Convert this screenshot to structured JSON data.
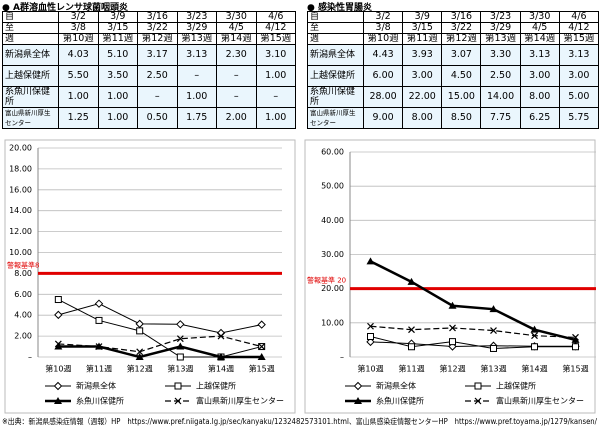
{
  "tables": [
    {
      "title": "● A群溶血性レンサ球菌咽頭炎",
      "header": [
        [
          "自",
          "3/2",
          "3/9",
          "3/16",
          "3/23",
          "3/30",
          "4/6"
        ],
        [
          "至",
          "3/8",
          "3/15",
          "3/22",
          "3/29",
          "4/5",
          "4/12"
        ],
        [
          "週",
          "第10週",
          "第11週",
          "第12週",
          "第13週",
          "第14週",
          "第15週"
        ]
      ],
      "rows": [
        [
          "新潟県全体",
          "4.03",
          "5.10",
          "3.17",
          "3.13",
          "2.30",
          "3.10"
        ],
        [
          "上越保健所",
          "5.50",
          "3.50",
          "2.50",
          "–",
          "–",
          "1.00"
        ],
        [
          "糸魚川保健所",
          "1.00",
          "1.00",
          "–",
          "1.00",
          "–",
          "–"
        ],
        [
          "富山県新川厚生センター",
          "1.25",
          "1.00",
          "0.50",
          "1.75",
          "2.00",
          "1.00"
        ]
      ]
    },
    {
      "title": "● 感染性胃腸炎",
      "header": [
        [
          "自",
          "3/2",
          "3/9",
          "3/16",
          "3/23",
          "3/30",
          "4/6"
        ],
        [
          "至",
          "3/8",
          "3/15",
          "3/22",
          "3/29",
          "4/5",
          "4/12"
        ],
        [
          "週",
          "第10週",
          "第11週",
          "第12週",
          "第13週",
          "第14週",
          "第15週"
        ]
      ],
      "rows": [
        [
          "新潟県全体",
          "4.43",
          "3.93",
          "3.07",
          "3.30",
          "3.13",
          "3.13"
        ],
        [
          "上越保健所",
          "6.00",
          "3.00",
          "4.50",
          "2.50",
          "3.00",
          "3.00"
        ],
        [
          "糸魚川保健所",
          "28.00",
          "22.00",
          "15.00",
          "14.00",
          "8.00",
          "5.00"
        ],
        [
          "富山県新川厚生センター",
          "9.00",
          "8.00",
          "8.50",
          "7.75",
          "6.25",
          "5.75"
        ]
      ]
    }
  ],
  "chart_data": [
    {
      "type": "line",
      "categories": [
        "第10週",
        "第11週",
        "第12週",
        "第13週",
        "第14週",
        "第15週"
      ],
      "ylim": [
        0,
        20
      ],
      "yticks": [
        {
          "value": 0,
          "label": "–"
        },
        {
          "value": 2,
          "label": "2.00"
        },
        {
          "value": 4,
          "label": "4.00"
        },
        {
          "value": 6,
          "label": "6.00"
        },
        {
          "value": 8,
          "label": "8.00"
        },
        {
          "value": 10,
          "label": "10.00"
        },
        {
          "value": 12,
          "label": "12.00"
        },
        {
          "value": 14,
          "label": "14.00"
        },
        {
          "value": 16,
          "label": "16.00"
        },
        {
          "value": 18,
          "label": "18.00"
        },
        {
          "value": 20,
          "label": "20.00"
        }
      ],
      "threshold": {
        "value": 8,
        "label": "警報基準8",
        "color": "#e00000"
      },
      "series": [
        {
          "name": "新潟県全体",
          "color": "#000000",
          "marker": "diamond",
          "dash": false,
          "line_width": 1,
          "values": [
            4.03,
            5.1,
            3.17,
            3.13,
            2.3,
            3.1
          ]
        },
        {
          "name": "上越保健所",
          "color": "#000000",
          "marker": "square",
          "dash": false,
          "line_width": 1,
          "values": [
            5.5,
            3.5,
            2.5,
            0,
            0,
            1.0
          ]
        },
        {
          "name": "糸魚川保健所",
          "color": "#000000",
          "marker": "triangle",
          "dash": false,
          "line_width": 2.5,
          "values": [
            1.0,
            1.0,
            0,
            1.0,
            0,
            0
          ]
        },
        {
          "name": "富山県新川厚生センター",
          "color": "#000000",
          "marker": "x",
          "dash": true,
          "line_width": 1.2,
          "values": [
            1.25,
            1.0,
            0.5,
            1.75,
            2.0,
            1.0
          ]
        }
      ]
    },
    {
      "type": "line",
      "categories": [
        "第10週",
        "第11週",
        "第12週",
        "第13週",
        "第14週",
        "第15週"
      ],
      "ylim": [
        0,
        60
      ],
      "yticks": [
        {
          "value": 0,
          "label": "–"
        },
        {
          "value": 10,
          "label": "10.00"
        },
        {
          "value": 20,
          "label": "20.00"
        },
        {
          "value": 30,
          "label": "30.00"
        },
        {
          "value": 40,
          "label": "40.00"
        },
        {
          "value": 50,
          "label": "50.00"
        },
        {
          "value": 60,
          "label": "60.00"
        }
      ],
      "threshold": {
        "value": 20,
        "label": "警報基準 20",
        "color": "#e00000"
      },
      "series": [
        {
          "name": "新潟県全体",
          "color": "#000000",
          "marker": "diamond",
          "dash": false,
          "line_width": 1,
          "values": [
            4.43,
            3.93,
            3.07,
            3.3,
            3.13,
            3.13
          ]
        },
        {
          "name": "上越保健所",
          "color": "#000000",
          "marker": "square",
          "dash": false,
          "line_width": 1,
          "values": [
            6.0,
            3.0,
            4.5,
            2.5,
            3.0,
            3.0
          ]
        },
        {
          "name": "糸魚川保健所",
          "color": "#000000",
          "marker": "triangle",
          "dash": false,
          "line_width": 2.5,
          "values": [
            28.0,
            22.0,
            15.0,
            14.0,
            8.0,
            5.0
          ]
        },
        {
          "name": "富山県新川厚生センター",
          "color": "#000000",
          "marker": "x",
          "dash": true,
          "line_width": 1.2,
          "values": [
            9.0,
            8.0,
            8.5,
            7.75,
            6.25,
            5.75
          ]
        }
      ]
    }
  ],
  "source": "※出典：新潟県感染症情報（週報）HP　https://www.pref.niigata.lg.jp/sec/kanyaku/1232482573101.html、富山県感染症情報センターHP　https://www.pref.toyama.jp/1279/kansen/"
}
